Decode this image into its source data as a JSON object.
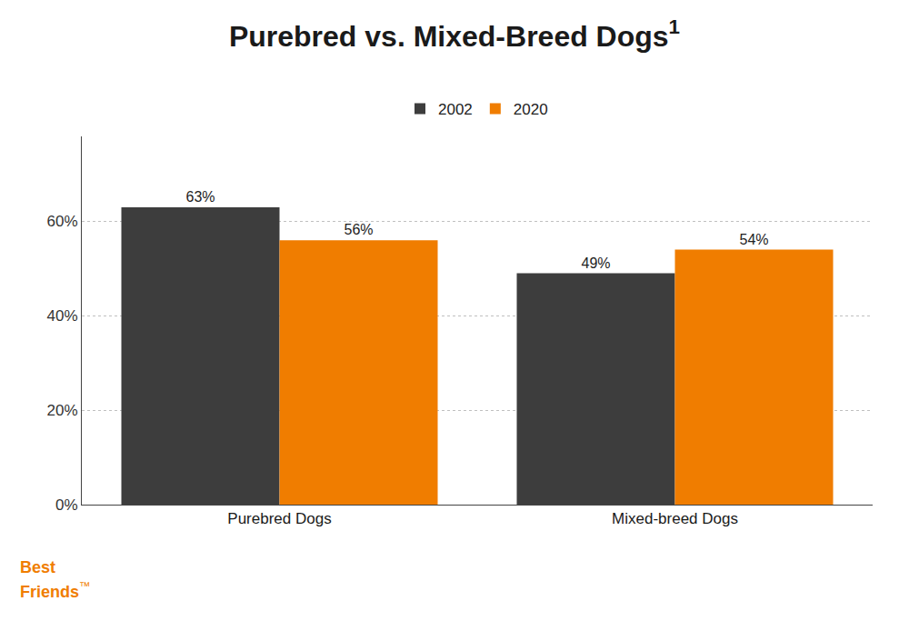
{
  "chart_data": {
    "type": "bar",
    "title": "Purebred vs. Mixed-Breed Dogs",
    "annotations": [
      "1",
      "Best",
      "Friends",
      "™"
    ],
    "categories": [
      "Purebred Dogs",
      "Mixed-breed Dogs"
    ],
    "series": [
      {
        "name": "2002",
        "color": "#3d3d3d",
        "values": [
          63,
          49
        ],
        "value_labels": [
          "63%",
          "49%"
        ]
      },
      {
        "name": "2020",
        "color": "#f07d00",
        "values": [
          56,
          54
        ],
        "value_labels": [
          "56%",
          "54%"
        ]
      }
    ],
    "ylim": [
      0,
      78
    ],
    "yticks": [
      {
        "value": 0,
        "label": "0%"
      },
      {
        "value": 20,
        "label": "20%"
      },
      {
        "value": 40,
        "label": "40%"
      },
      {
        "value": 60,
        "label": "60%"
      }
    ],
    "grid": true,
    "legend": "top",
    "data_labels": true
  }
}
